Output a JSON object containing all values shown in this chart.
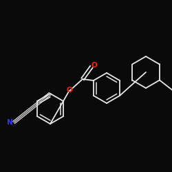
{
  "background_color": "#0a0a0a",
  "bond_color": "#e8e8e8",
  "atom_O_color": "#ff2200",
  "atom_N_color": "#3333ff",
  "atom_O_label": "O",
  "atom_N_label": "N",
  "figsize": [
    2.5,
    2.5
  ],
  "dpi": 100
}
